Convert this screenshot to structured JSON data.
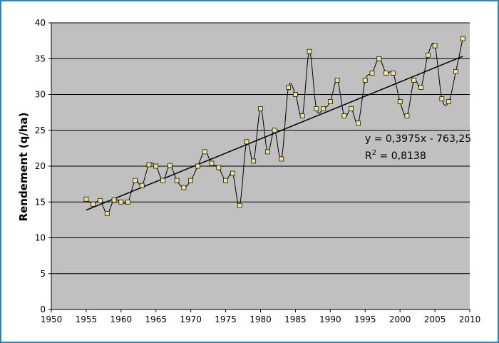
{
  "chart_data": {
    "type": "scatter",
    "title": "",
    "xlabel": "",
    "ylabel": "Rendement (q/ha)",
    "xlim": [
      1950,
      2010
    ],
    "ylim": [
      0,
      40
    ],
    "xticks": [
      "1950",
      "1955",
      "1960",
      "1965",
      "1970",
      "1975",
      "1980",
      "1985",
      "1990",
      "1995",
      "2000",
      "2005",
      "2010"
    ],
    "yticks": [
      "0",
      "5",
      "10",
      "15",
      "20",
      "25",
      "30",
      "35",
      "40"
    ],
    "grid": "horizontal",
    "legend": "none",
    "plot_background": "#c0c0c0",
    "marker_color": "#f2e28c",
    "line_color": "#000000",
    "series": [
      {
        "x": [
          1955,
          1956,
          1957,
          1958,
          1959,
          1960,
          1961,
          1962,
          1963,
          1964,
          1965,
          1966,
          1967,
          1968,
          1969,
          1970,
          1971,
          1972,
          1973,
          1974,
          1975,
          1976,
          1977,
          1978,
          1979,
          1980,
          1981,
          1982,
          1983,
          1984,
          1985,
          1986,
          1987,
          1988,
          1989,
          1990,
          1991,
          1992,
          1993,
          1994,
          1995,
          1996,
          1997,
          1998,
          1999,
          2000,
          2001,
          2002,
          2003,
          2004,
          2005,
          2006,
          2007,
          2008,
          2009
        ],
        "y": [
          15.4,
          14.7,
          15.2,
          13.4,
          15.3,
          15.0,
          15.0,
          18.0,
          17.3,
          20.2,
          20.0,
          18.0,
          20.1,
          18.0,
          17.0,
          18.0,
          20.0,
          22.0,
          20.4,
          19.8,
          18.0,
          19.0,
          14.5,
          23.4,
          20.7,
          28.0,
          22.0,
          25.0,
          21.0,
          31.0,
          30.0,
          27.0,
          36.0,
          28.0,
          28.0,
          29.0,
          32.0,
          27.0,
          28.0,
          26.0,
          32.0,
          33.0,
          35.0,
          33.0,
          33.0,
          29.0,
          27.0,
          32.0,
          31.0,
          35.5,
          36.8,
          29.4,
          29.0,
          33.2,
          37.8
        ]
      }
    ],
    "trendline": {
      "slope": 0.3975,
      "intercept": -763.25,
      "x_range": [
        1955,
        2009
      ],
      "equation": "y = 0,3975x - 763,25",
      "r2_label": "R",
      "r2_sup": "2",
      "r2_value": " = 0,8138"
    }
  }
}
